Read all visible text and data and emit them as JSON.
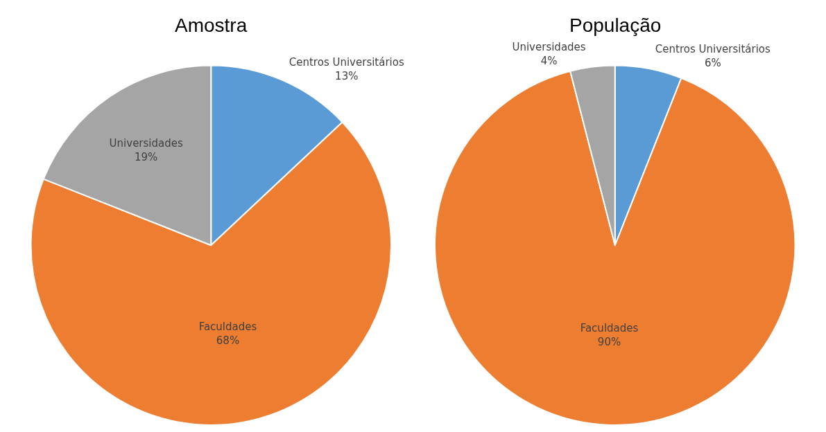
{
  "chart_data": [
    {
      "type": "pie",
      "title": "Amostra",
      "categories": [
        "Centros Universitários",
        "Faculdades",
        "Universidades"
      ],
      "values": [
        13,
        68,
        19
      ],
      "colors": [
        "#5b9bd5",
        "#ed7d31",
        "#a5a5a5"
      ],
      "value_labels": [
        "13%",
        "68%",
        "19%"
      ]
    },
    {
      "type": "pie",
      "title": "População",
      "categories": [
        "Centros Universitários",
        "Faculdades",
        "Universidades"
      ],
      "values": [
        6,
        90,
        4
      ],
      "colors": [
        "#5b9bd5",
        "#ed7d31",
        "#a5a5a5"
      ],
      "value_labels": [
        "6%",
        "90%",
        "4%"
      ]
    }
  ]
}
